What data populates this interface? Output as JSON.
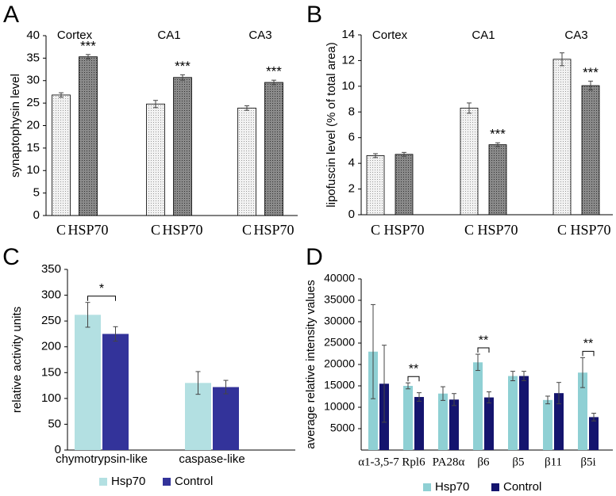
{
  "chart_data": [
    {
      "type": "bar",
      "panel": "A",
      "ylabel": "synaptophysin level",
      "groups": [
        "Cortex",
        "CA1",
        "CA3"
      ],
      "series": [
        {
          "name": "C",
          "color": "#f2f2f2",
          "texture": "dotted",
          "values": [
            26.8,
            24.8,
            23.9
          ],
          "errors": [
            0.5,
            0.8,
            0.5
          ],
          "stars": [
            null,
            null,
            null
          ]
        },
        {
          "name": "HSP70",
          "color": "#8a8a8a",
          "texture": "dotted",
          "values": [
            35.3,
            30.7,
            29.6
          ],
          "errors": [
            0.5,
            0.6,
            0.5
          ],
          "stars": [
            "***",
            "***",
            "***"
          ]
        }
      ],
      "ylim": [
        0,
        40
      ],
      "yticks": [
        0,
        5,
        10,
        15,
        20,
        25,
        30,
        35,
        40
      ]
    },
    {
      "type": "bar",
      "panel": "B",
      "ylabel": "lipofuscin level (% of total area)",
      "groups": [
        "Cortex",
        "CA1",
        "CA3"
      ],
      "series": [
        {
          "name": "C",
          "color": "#f2f2f2",
          "texture": "dotted",
          "values": [
            4.6,
            8.3,
            12.1
          ],
          "errors": [
            0.15,
            0.4,
            0.5
          ],
          "stars": [
            null,
            null,
            null
          ]
        },
        {
          "name": "HSP70",
          "color": "#8a8a8a",
          "texture": "dotted",
          "values": [
            4.7,
            5.45,
            10.05
          ],
          "errors": [
            0.15,
            0.15,
            0.35
          ],
          "stars": [
            null,
            "***",
            "***"
          ]
        }
      ],
      "ylim": [
        0,
        14
      ],
      "yticks": [
        0,
        2,
        4,
        6,
        8,
        10,
        12,
        14
      ]
    },
    {
      "type": "bar",
      "panel": "C",
      "ylabel": "relative activity units",
      "categories": [
        "chymotrypsin-like",
        "caspase-like"
      ],
      "series": [
        {
          "name": "Hsp70",
          "color": "#b3e0e2",
          "values": [
            262,
            130
          ],
          "errors": [
            24,
            22
          ]
        },
        {
          "name": "Control",
          "color": "#33339a",
          "values": [
            225,
            122
          ],
          "errors": [
            14,
            13
          ]
        }
      ],
      "significance": [
        "*",
        null
      ],
      "ylim": [
        0,
        350
      ],
      "yticks": [
        0,
        50,
        100,
        150,
        200,
        250,
        300,
        350
      ],
      "legend": "bottom"
    },
    {
      "type": "bar",
      "panel": "D",
      "ylabel": "average relative intensity values",
      "categories": [
        "α1-3,5-7",
        "Rpl6",
        "PA28α",
        "β6",
        "β5",
        "β11",
        "β5i"
      ],
      "series": [
        {
          "name": "Hsp70",
          "color": "#8fd0d4",
          "values": [
            23000,
            15000,
            13200,
            20500,
            17300,
            11700,
            18100
          ],
          "errors": [
            11000,
            700,
            1600,
            1900,
            1100,
            900,
            3500
          ]
        },
        {
          "name": "Control",
          "color": "#14146e",
          "values": [
            15500,
            12400,
            11800,
            12300,
            17300,
            13300,
            7700
          ],
          "errors": [
            9000,
            1000,
            1400,
            1300,
            1100,
            2500,
            900
          ]
        }
      ],
      "significance": [
        null,
        "**",
        null,
        "**",
        null,
        null,
        "**"
      ],
      "ylim": [
        0,
        40000
      ],
      "yticks": [
        5000,
        10000,
        15000,
        20000,
        25000,
        30000,
        35000,
        40000
      ],
      "legend": "bottom"
    }
  ]
}
